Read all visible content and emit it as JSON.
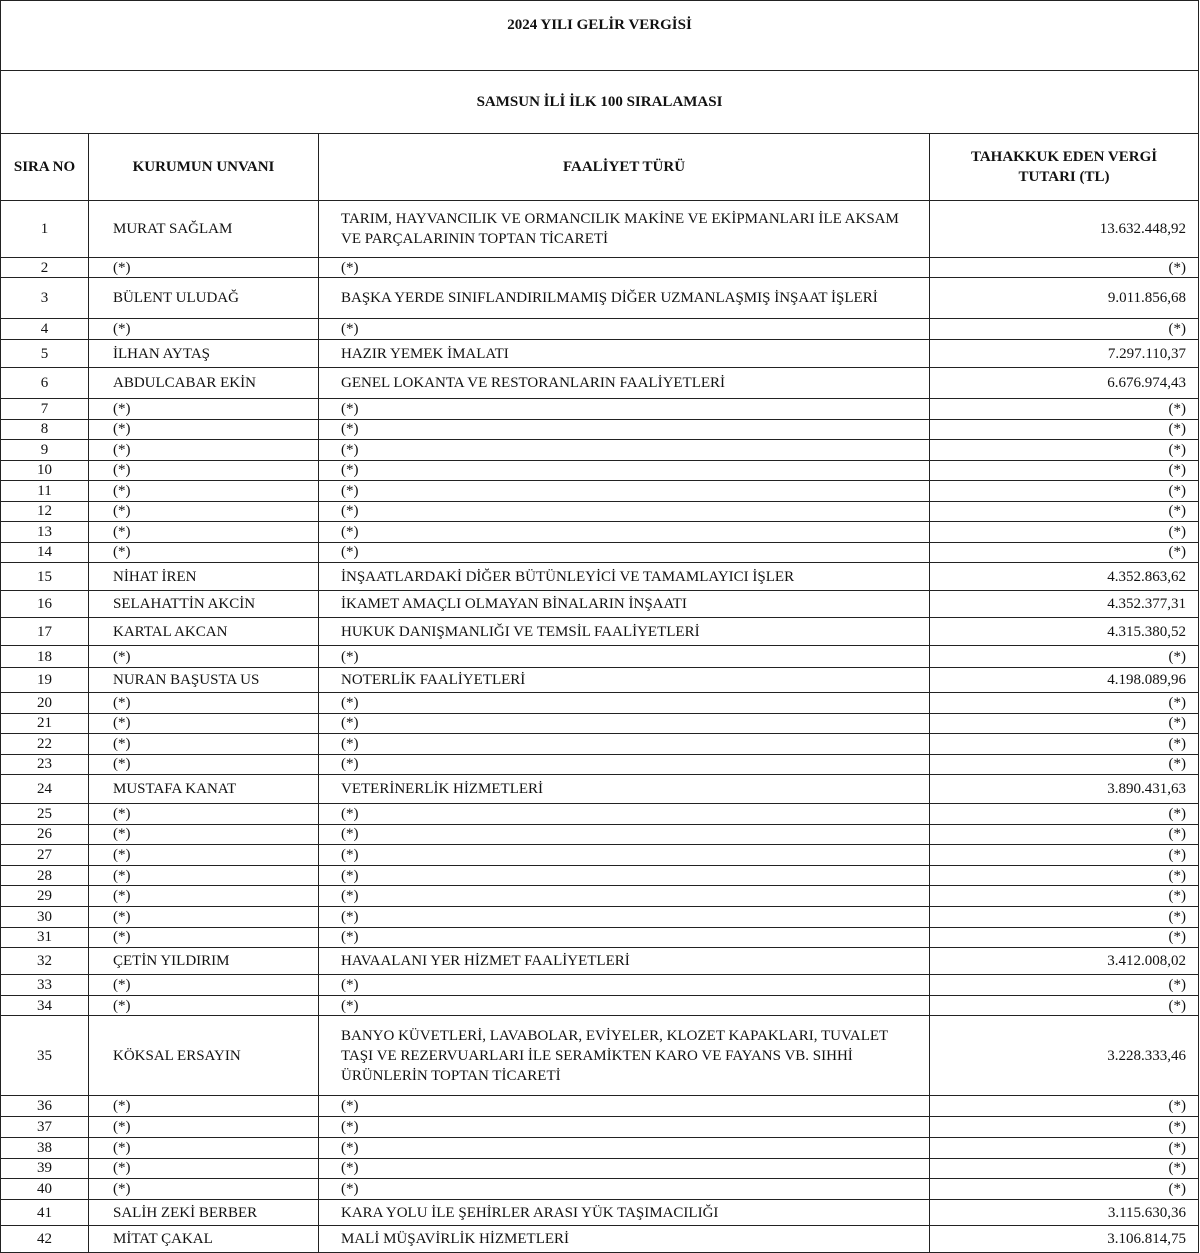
{
  "document": {
    "title": "2024 YILI GELİR VERGİSİ",
    "subtitle": "SAMSUN İLİ İLK 100 SIRALAMASI",
    "columns": [
      "SIRA NO",
      "KURUMUN UNVANI",
      "FAALİYET TÜRÜ",
      "TAHAKKUK EDEN VERGİ TUTARI (TL)"
    ],
    "rows": [
      [
        "1",
        "MURAT SAĞLAM",
        "TARIM, HAYVANCILIK VE ORMANCILIK MAKİNE VE EKİPMANLARI İLE AKSAM VE PARÇALARININ TOPTAN TİCARETİ",
        "13.632.448,92"
      ],
      [
        "2",
        "(*)",
        "(*)",
        "(*)"
      ],
      [
        "3",
        "BÜLENT ULUDAĞ",
        "BAŞKA YERDE SINIFLANDIRILMAMIŞ DİĞER UZMANLAŞMIŞ İNŞAAT İŞLERİ",
        "9.011.856,68"
      ],
      [
        "4",
        "(*)",
        "(*)",
        "(*)"
      ],
      [
        "5",
        "İLHAN AYTAŞ",
        "HAZIR YEMEK İMALATI",
        "7.297.110,37"
      ],
      [
        "6",
        "ABDULCABAR EKİN",
        "GENEL LOKANTA VE RESTORANLARIN FAALİYETLERİ",
        "6.676.974,43"
      ],
      [
        "7",
        "(*)",
        "(*)",
        "(*)"
      ],
      [
        "8",
        "(*)",
        "(*)",
        "(*)"
      ],
      [
        "9",
        "(*)",
        "(*)",
        "(*)"
      ],
      [
        "10",
        "(*)",
        "(*)",
        "(*)"
      ],
      [
        "11",
        "(*)",
        "(*)",
        "(*)"
      ],
      [
        "12",
        "(*)",
        "(*)",
        "(*)"
      ],
      [
        "13",
        "(*)",
        "(*)",
        "(*)"
      ],
      [
        "14",
        "(*)",
        "(*)",
        "(*)"
      ],
      [
        "15",
        "NİHAT İREN",
        "İNŞAATLARDAKİ DİĞER BÜTÜNLEYİCİ VE TAMAMLAYICI İŞLER",
        "4.352.863,62"
      ],
      [
        "16",
        "SELAHATTİN AKCİN",
        "İKAMET AMAÇLI OLMAYAN BİNALARIN İNŞAATI",
        "4.352.377,31"
      ],
      [
        "17",
        "KARTAL AKCAN",
        "HUKUK DANIŞMANLIĞI VE TEMSİL FAALİYETLERİ",
        "4.315.380,52"
      ],
      [
        "18",
        "(*)",
        "(*)",
        "(*)"
      ],
      [
        "19",
        "NURAN BAŞUSTA US",
        "NOTERLİK FAALİYETLERİ",
        "4.198.089,96"
      ],
      [
        "20",
        "(*)",
        "(*)",
        "(*)"
      ],
      [
        "21",
        "(*)",
        "(*)",
        "(*)"
      ],
      [
        "22",
        "(*)",
        "(*)",
        "(*)"
      ],
      [
        "23",
        "(*)",
        "(*)",
        "(*)"
      ],
      [
        "24",
        "MUSTAFA KANAT",
        "VETERİNERLİK HİZMETLERİ",
        "3.890.431,63"
      ],
      [
        "25",
        "(*)",
        "(*)",
        "(*)"
      ],
      [
        "26",
        "(*)",
        "(*)",
        "(*)"
      ],
      [
        "27",
        "(*)",
        "(*)",
        "(*)"
      ],
      [
        "28",
        "(*)",
        "(*)",
        "(*)"
      ],
      [
        "29",
        "(*)",
        "(*)",
        "(*)"
      ],
      [
        "30",
        "(*)",
        "(*)",
        "(*)"
      ],
      [
        "31",
        "(*)",
        "(*)",
        "(*)"
      ],
      [
        "32",
        "ÇETİN YILDIRIM",
        "HAVAALANI YER HİZMET FAALİYETLERİ",
        "3.412.008,02"
      ],
      [
        "33",
        "(*)",
        "(*)",
        "(*)"
      ],
      [
        "34",
        "(*)",
        "(*)",
        "(*)"
      ],
      [
        "35",
        "KÖKSAL ERSAYIN",
        "BANYO KÜVETLERİ, LAVABOLAR, EVİYELER, KLOZET KAPAKLARI, TUVALET TAŞI VE REZERVUARLARI İLE SERAMİKTEN KARO VE FAYANS VB. SIHHİ ÜRÜNLERİN TOPTAN TİCARETİ",
        "3.228.333,46"
      ],
      [
        "36",
        "(*)",
        "(*)",
        "(*)"
      ],
      [
        "37",
        "(*)",
        "(*)",
        "(*)"
      ],
      [
        "38",
        "(*)",
        "(*)",
        "(*)"
      ],
      [
        "39",
        "(*)",
        "(*)",
        "(*)"
      ],
      [
        "40",
        "(*)",
        "(*)",
        "(*)"
      ],
      [
        "41",
        "SALİH ZEKİ BERBER",
        "KARA YOLU İLE ŞEHİRLER ARASI YÜK TAŞIMACILIĞI",
        "3.115.630,36"
      ],
      [
        "42",
        "MİTAT ÇAKAL",
        "MALİ MÜŞAVİRLİK HİZMETLERİ",
        "3.106.814,75"
      ]
    ]
  }
}
